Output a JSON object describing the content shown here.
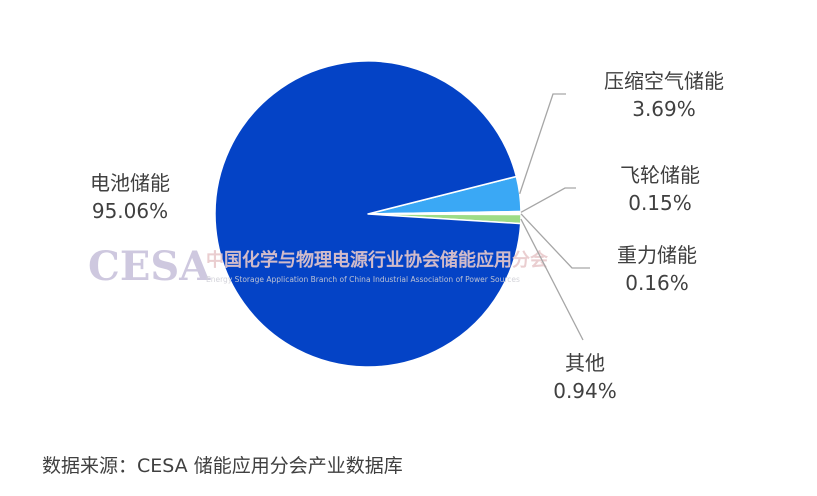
{
  "chart_data": {
    "type": "pie",
    "slices": [
      {
        "label": "电池储能",
        "value": 95.06,
        "value_text": "95.06%",
        "color": "#0443C6"
      },
      {
        "label": "压缩空气储能",
        "value": 3.69,
        "value_text": "3.69%",
        "color": "#3AA8F5"
      },
      {
        "label": "飞轮储能",
        "value": 0.15,
        "value_text": "0.15%",
        "color": "#BDEAF5"
      },
      {
        "label": "重力储能",
        "value": 0.16,
        "value_text": "0.16%",
        "color": "#D8D8D8"
      },
      {
        "label": "其他",
        "value": 0.94,
        "value_text": "0.94%",
        "color": "#9EDC86"
      }
    ]
  },
  "watermark": {
    "logo": "CESA",
    "org_name_cn": "中国化学与物理电源行业协会储能应用分会",
    "org_name_en": "Energy Storage Application Branch of China Industrial Association of Power Sources"
  },
  "source": "数据来源：CESA 储能应用分会产业数据库"
}
